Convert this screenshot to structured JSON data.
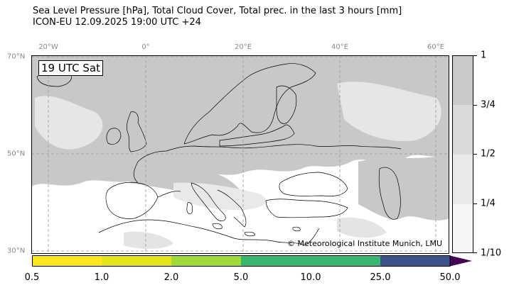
{
  "title": {
    "line1": "Sea Level Pressure [hPa], Total Cloud Cover, Total prec. in the last 3 hours [mm]",
    "line2": "ICON-EU 12.09.2025 19:00 UTC +24"
  },
  "map": {
    "longitude_labels": [
      "20°W",
      "0°",
      "20°E",
      "40°E",
      "60°E"
    ],
    "latitude_labels": [
      "70°N",
      "50°N",
      "30°N"
    ],
    "time_label": "19 UTC Sat",
    "credit": "© Meteorological Institute Munich, LMU",
    "colors": {
      "land_cloud": "#c8c8c8",
      "light_cloud": "#e4e4e4",
      "clear": "#ffffff",
      "coast": "#000000",
      "grid": "#999999"
    }
  },
  "cloud_colorbar": {
    "labels": [
      "1",
      "3/4",
      "1/2",
      "1/4",
      "1/10"
    ],
    "colors": [
      "#c9c9c9",
      "#d9d9d9",
      "#e9e9e9",
      "#f6f6f6"
    ]
  },
  "precip_colorbar": {
    "labels": [
      "0.5",
      "1.0",
      "2.0",
      "5.0",
      "10.0",
      "25.0",
      "50.0"
    ],
    "colors": [
      "#fde725",
      "#e3e51c",
      "#bfdc2a",
      "#a0da39",
      "#3bb671",
      "#2c728e",
      "#3b4f8a",
      "#440154"
    ]
  }
}
